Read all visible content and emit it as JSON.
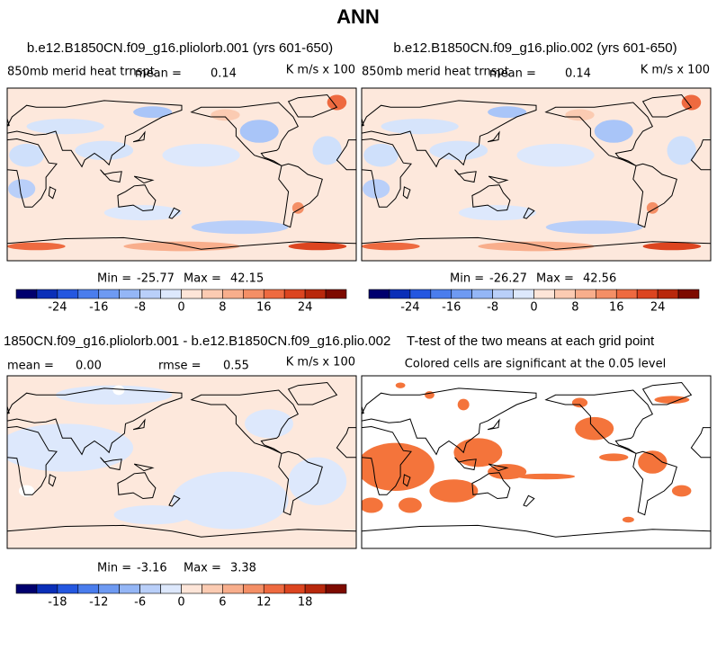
{
  "title": "ANN",
  "panels": [
    {
      "title": "b.e12.B1850CN.f09_g16.pliolorb.001 (yrs 601-650)",
      "field": "850mb merid heat trnspt",
      "mean_label": "mean =",
      "mean": 0.14,
      "units": "K m/s x 100",
      "min_label": "Min =",
      "min": -25.77,
      "max_label": "Max =",
      "max": 42.15
    },
    {
      "title": "b.e12.B1850CN.f09_g16.plio.002 (yrs 601-650)",
      "field": "850mb merid heat trnspt",
      "mean_label": "mean =",
      "mean": 0.14,
      "units": "K m/s x 100",
      "min_label": "Min =",
      "min": -26.27,
      "max_label": "Max =",
      "max": 42.56
    },
    {
      "title": "1850CN.f09_g16.pliolorb.001 - b.e12.B1850CN.f09_g16.plio.002",
      "mean_label": "mean =",
      "mean": "0.00",
      "rmse_label": "rmse =",
      "rmse": 0.55,
      "units": "K m/s x 100",
      "min_label": "Min =",
      "min": -3.16,
      "max_label": "Max =",
      "max": 3.38
    },
    {
      "title": "T-test of the two means at each grid point",
      "subtitle": "Colored cells are significant at the 0.05 level"
    }
  ],
  "colorbars": [
    {
      "ticks": [
        -24,
        -16,
        -8,
        0,
        8,
        16,
        24
      ],
      "colors": [
        "#00006e",
        "#0a2fb8",
        "#2457e0",
        "#4a7ded",
        "#6e9af2",
        "#94b6f6",
        "#b9cff9",
        "#dde8fc",
        "#fde5d8",
        "#fbcbb2",
        "#f8ae8c",
        "#f48f66",
        "#ee6a40",
        "#dc4520",
        "#b8280c",
        "#7d0a00"
      ]
    },
    {
      "ticks": [
        -24,
        -16,
        -8,
        0,
        8,
        16,
        24
      ],
      "colors": [
        "#00006e",
        "#0a2fb8",
        "#2457e0",
        "#4a7ded",
        "#6e9af2",
        "#94b6f6",
        "#b9cff9",
        "#dde8fc",
        "#fde5d8",
        "#fbcbb2",
        "#f8ae8c",
        "#f48f66",
        "#ee6a40",
        "#dc4520",
        "#b8280c",
        "#7d0a00"
      ]
    },
    {
      "ticks": [
        -18,
        -12,
        -6,
        0,
        6,
        12,
        18
      ],
      "colors": [
        "#00006e",
        "#0a2fb8",
        "#2457e0",
        "#4a7ded",
        "#6e9af2",
        "#94b6f6",
        "#b9cff9",
        "#dde8fc",
        "#fde5d8",
        "#fbcbb2",
        "#f8ae8c",
        "#f48f66",
        "#ee6a40",
        "#dc4520",
        "#b8280c",
        "#7d0a00"
      ]
    }
  ]
}
